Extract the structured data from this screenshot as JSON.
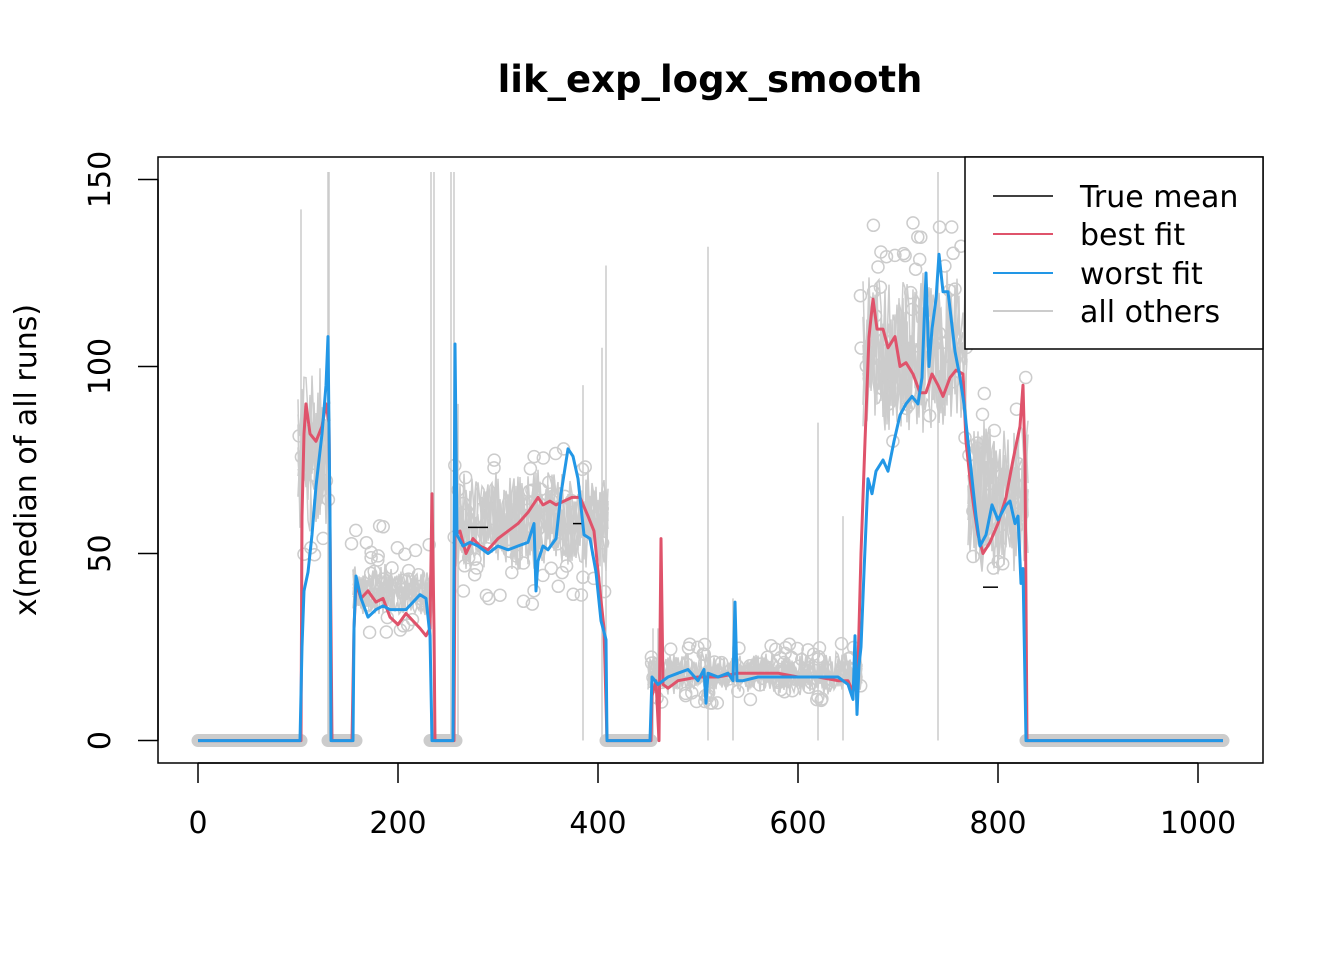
{
  "chart_data": {
    "type": "line",
    "title": "lik_exp_logx_smooth",
    "xlabel": "",
    "ylabel": "x(median of all runs)",
    "xlim": [
      -40,
      1065
    ],
    "ylim": [
      -6,
      156
    ],
    "xticks": [
      0,
      200,
      400,
      600,
      800,
      1000
    ],
    "yticks": [
      0,
      50,
      100,
      150
    ],
    "xtick_labels": [
      "0",
      "200",
      "400",
      "600",
      "800",
      "1000"
    ],
    "ytick_labels": [
      "0",
      "50",
      "100",
      "150"
    ],
    "legend": {
      "position": "top-right",
      "entries": [
        {
          "label": "True mean",
          "color": "#000000"
        },
        {
          "label": "best fit",
          "color": "#DF536B"
        },
        {
          "label": "worst fit",
          "color": "#2297E6"
        },
        {
          "label": "all others",
          "color": "#CCCCCC"
        }
      ]
    },
    "series": [
      {
        "name": "True mean",
        "color": "#000000",
        "segments": [
          [
            [
              270,
              57
            ],
            [
              290,
              57
            ]
          ],
          [
            [
              375,
              58
            ],
            [
              385,
              58
            ]
          ],
          [
            [
              785,
              41
            ],
            [
              800,
              41
            ]
          ]
        ]
      },
      {
        "name": "best fit",
        "color": "#DF536B",
        "points": [
          [
            0,
            0
          ],
          [
            103,
            0
          ],
          [
            104,
            60
          ],
          [
            106,
            82
          ],
          [
            108,
            90
          ],
          [
            112,
            82
          ],
          [
            118,
            80
          ],
          [
            124,
            84
          ],
          [
            128,
            90
          ],
          [
            131,
            85
          ],
          [
            133,
            30
          ],
          [
            134,
            0
          ],
          [
            154,
            0
          ],
          [
            156,
            30
          ],
          [
            158,
            42
          ],
          [
            163,
            38
          ],
          [
            170,
            40
          ],
          [
            178,
            37
          ],
          [
            185,
            38
          ],
          [
            192,
            33
          ],
          [
            200,
            31
          ],
          [
            208,
            34
          ],
          [
            215,
            32
          ],
          [
            222,
            30
          ],
          [
            228,
            28
          ],
          [
            232,
            30
          ],
          [
            234,
            66
          ],
          [
            236,
            30
          ],
          [
            237,
            0
          ],
          [
            256,
            0
          ],
          [
            257,
            55
          ],
          [
            262,
            56
          ],
          [
            268,
            50
          ],
          [
            275,
            54
          ],
          [
            282,
            52
          ],
          [
            290,
            51
          ],
          [
            300,
            54
          ],
          [
            310,
            56
          ],
          [
            320,
            58
          ],
          [
            330,
            61
          ],
          [
            340,
            65
          ],
          [
            345,
            63
          ],
          [
            352,
            64
          ],
          [
            358,
            63
          ],
          [
            366,
            64
          ],
          [
            374,
            65
          ],
          [
            382,
            65
          ],
          [
            390,
            60
          ],
          [
            396,
            56
          ],
          [
            402,
            40
          ],
          [
            406,
            30
          ],
          [
            409,
            0
          ],
          [
            453,
            0
          ],
          [
            454,
            12
          ],
          [
            458,
            16
          ],
          [
            461,
            0
          ],
          [
            463,
            54
          ],
          [
            465,
            15
          ],
          [
            470,
            14
          ],
          [
            480,
            16
          ],
          [
            500,
            17
          ],
          [
            520,
            17
          ],
          [
            540,
            18
          ],
          [
            560,
            18
          ],
          [
            580,
            18
          ],
          [
            600,
            17
          ],
          [
            620,
            17
          ],
          [
            640,
            16
          ],
          [
            650,
            16
          ],
          [
            655,
            13
          ],
          [
            658,
            16
          ],
          [
            660,
            20
          ],
          [
            663,
            50
          ],
          [
            667,
            80
          ],
          [
            671,
            108
          ],
          [
            675,
            118
          ],
          [
            679,
            110
          ],
          [
            685,
            110
          ],
          [
            690,
            105
          ],
          [
            697,
            108
          ],
          [
            702,
            100
          ],
          [
            708,
            101
          ],
          [
            715,
            98
          ],
          [
            722,
            93
          ],
          [
            728,
            93
          ],
          [
            734,
            98
          ],
          [
            740,
            95
          ],
          [
            745,
            92
          ],
          [
            752,
            97
          ],
          [
            758,
            99
          ],
          [
            765,
            98
          ],
          [
            768,
            80
          ],
          [
            772,
            70
          ],
          [
            776,
            62
          ],
          [
            780,
            55
          ],
          [
            785,
            50
          ],
          [
            792,
            53
          ],
          [
            800,
            58
          ],
          [
            808,
            65
          ],
          [
            815,
            75
          ],
          [
            822,
            84
          ],
          [
            825,
            95
          ],
          [
            827,
            75
          ],
          [
            829,
            0
          ],
          [
            1025,
            0
          ]
        ]
      },
      {
        "name": "worst fit",
        "color": "#2297E6",
        "points": [
          [
            0,
            0
          ],
          [
            102,
            0
          ],
          [
            104,
            25
          ],
          [
            106,
            40
          ],
          [
            110,
            45
          ],
          [
            114,
            55
          ],
          [
            118,
            68
          ],
          [
            124,
            82
          ],
          [
            128,
            95
          ],
          [
            130,
            108
          ],
          [
            132,
            60
          ],
          [
            133,
            0
          ],
          [
            155,
            0
          ],
          [
            156,
            30
          ],
          [
            158,
            44
          ],
          [
            163,
            38
          ],
          [
            170,
            33
          ],
          [
            178,
            35
          ],
          [
            185,
            36
          ],
          [
            192,
            35
          ],
          [
            200,
            35
          ],
          [
            208,
            35
          ],
          [
            215,
            37
          ],
          [
            222,
            39
          ],
          [
            228,
            38
          ],
          [
            232,
            28
          ],
          [
            234,
            0
          ],
          [
            255,
            0
          ],
          [
            256,
            50
          ],
          [
            257,
            106
          ],
          [
            259,
            55
          ],
          [
            265,
            52
          ],
          [
            272,
            53
          ],
          [
            280,
            52
          ],
          [
            290,
            50
          ],
          [
            300,
            52
          ],
          [
            310,
            51
          ],
          [
            320,
            52
          ],
          [
            330,
            53
          ],
          [
            336,
            58
          ],
          [
            338,
            40
          ],
          [
            340,
            48
          ],
          [
            345,
            52
          ],
          [
            350,
            51
          ],
          [
            358,
            54
          ],
          [
            363,
            66
          ],
          [
            370,
            78
          ],
          [
            375,
            76
          ],
          [
            380,
            70
          ],
          [
            386,
            55
          ],
          [
            392,
            54
          ],
          [
            398,
            45
          ],
          [
            403,
            32
          ],
          [
            408,
            27
          ],
          [
            409,
            0
          ],
          [
            452,
            0
          ],
          [
            454,
            17
          ],
          [
            460,
            15
          ],
          [
            470,
            17
          ],
          [
            480,
            18
          ],
          [
            490,
            19
          ],
          [
            500,
            16
          ],
          [
            506,
            19
          ],
          [
            508,
            10
          ],
          [
            510,
            18
          ],
          [
            520,
            17
          ],
          [
            530,
            18
          ],
          [
            535,
            16
          ],
          [
            537,
            37
          ],
          [
            539,
            16
          ],
          [
            545,
            16
          ],
          [
            560,
            17
          ],
          [
            580,
            17
          ],
          [
            600,
            17
          ],
          [
            620,
            17
          ],
          [
            640,
            17
          ],
          [
            650,
            15
          ],
          [
            655,
            11
          ],
          [
            657,
            28
          ],
          [
            659,
            7
          ],
          [
            661,
            20
          ],
          [
            663,
            25
          ],
          [
            666,
            45
          ],
          [
            670,
            70
          ],
          [
            674,
            66
          ],
          [
            678,
            72
          ],
          [
            685,
            75
          ],
          [
            690,
            72
          ],
          [
            696,
            80
          ],
          [
            702,
            87
          ],
          [
            708,
            90
          ],
          [
            714,
            92
          ],
          [
            720,
            90
          ],
          [
            724,
            97
          ],
          [
            728,
            125
          ],
          [
            731,
            100
          ],
          [
            734,
            110
          ],
          [
            738,
            118
          ],
          [
            741,
            130
          ],
          [
            745,
            120
          ],
          [
            750,
            120
          ],
          [
            757,
            104
          ],
          [
            762,
            97
          ],
          [
            766,
            90
          ],
          [
            770,
            80
          ],
          [
            774,
            70
          ],
          [
            778,
            60
          ],
          [
            782,
            52
          ],
          [
            788,
            55
          ],
          [
            794,
            63
          ],
          [
            800,
            59
          ],
          [
            808,
            63
          ],
          [
            812,
            64
          ],
          [
            817,
            58
          ],
          [
            820,
            60
          ],
          [
            823,
            42
          ],
          [
            825,
            46
          ],
          [
            828,
            0
          ],
          [
            1025,
            0
          ]
        ]
      }
    ],
    "others_envelope": [
      {
        "from": 100,
        "to": 133,
        "low": 45,
        "high": 110
      },
      {
        "from": 155,
        "to": 235,
        "low": 30,
        "high": 50
      },
      {
        "from": 256,
        "to": 410,
        "low": 40,
        "high": 78
      },
      {
        "from": 450,
        "to": 665,
        "low": 10,
        "high": 26
      },
      {
        "from": 665,
        "to": 770,
        "low": 72,
        "high": 135
      },
      {
        "from": 770,
        "to": 830,
        "low": 35,
        "high": 95
      }
    ],
    "others_spikes": [
      [
        103,
        142
      ],
      [
        130,
        152
      ],
      [
        131,
        152
      ],
      [
        233,
        152
      ],
      [
        236,
        152
      ],
      [
        253,
        152
      ],
      [
        256,
        152
      ],
      [
        260,
        90
      ],
      [
        385,
        95
      ],
      [
        404,
        105
      ],
      [
        408,
        127
      ],
      [
        455,
        30
      ],
      [
        460,
        30
      ],
      [
        510,
        132
      ],
      [
        535,
        38
      ],
      [
        620,
        85
      ],
      [
        645,
        60
      ],
      [
        740,
        152
      ]
    ],
    "zero_marker_ranges": [
      [
        0,
        103
      ],
      [
        130,
        158
      ],
      [
        232,
        258
      ],
      [
        408,
        453
      ],
      [
        828,
        1025
      ]
    ],
    "circle_clusters": [
      {
        "from": 100,
        "to": 133,
        "low": 48,
        "high": 100
      },
      {
        "from": 152,
        "to": 234,
        "low": 28,
        "high": 58
      },
      {
        "from": 256,
        "to": 410,
        "low": 36,
        "high": 80
      },
      {
        "from": 450,
        "to": 665,
        "low": 10,
        "high": 26
      },
      {
        "from": 662,
        "to": 770,
        "low": 80,
        "high": 139
      },
      {
        "from": 770,
        "to": 830,
        "low": 36,
        "high": 100
      }
    ]
  }
}
